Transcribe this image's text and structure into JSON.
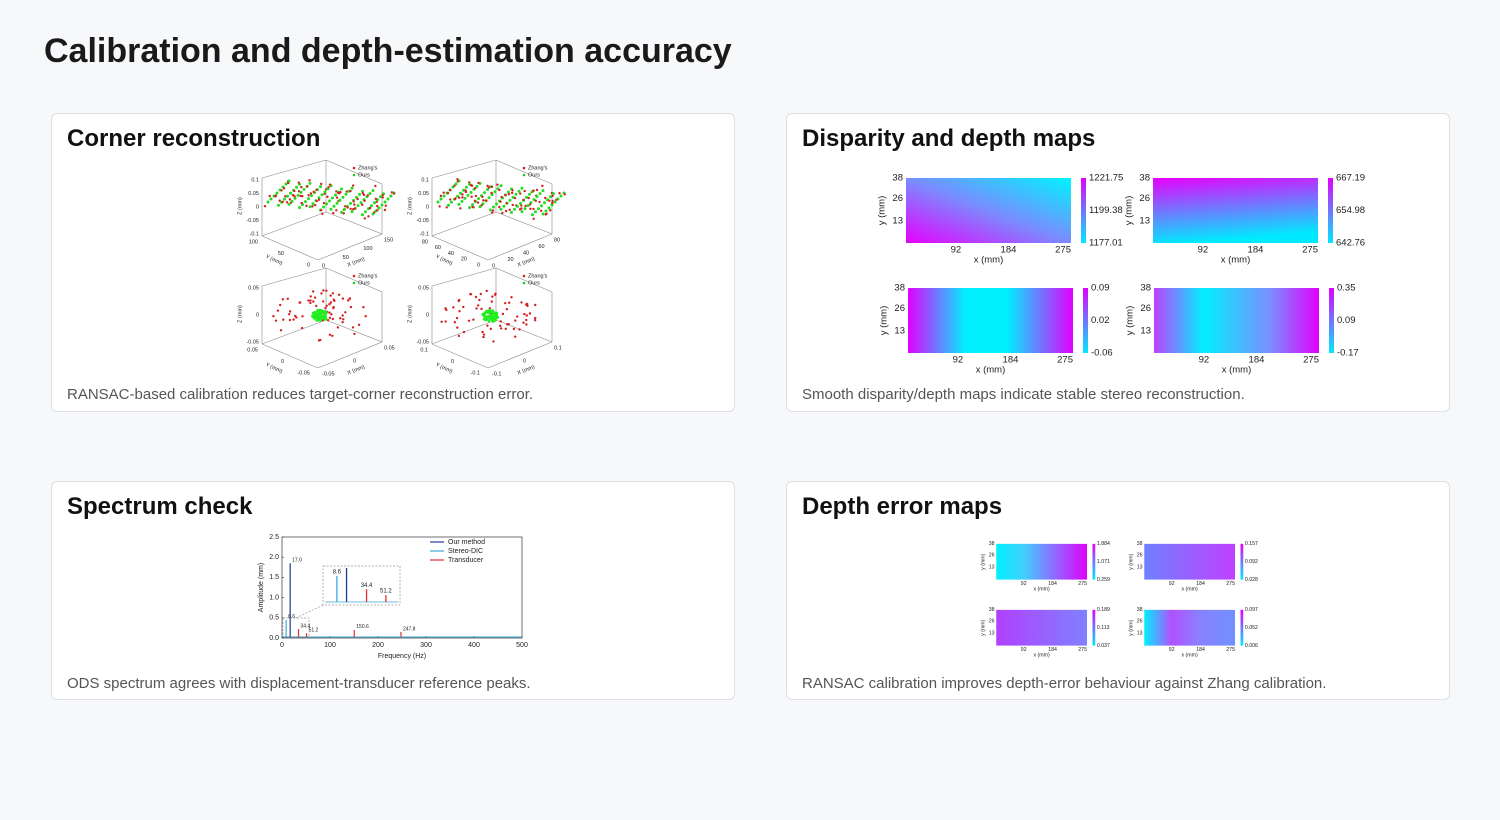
{
  "header": {
    "title": "Calibration and depth-estimation accuracy"
  },
  "panels": [
    {
      "title": "Corner reconstruction",
      "caption": "RANSAC-based calibration reduces target-corner reconstruction error.",
      "figure": {
        "legend": [
          "Zhang's",
          "Ours"
        ],
        "x_label": "X (mm)",
        "y_label": "Y (mm)",
        "z_label": "Z (mm)",
        "subplots": [
          {
            "z_ticks": [
              "0.1",
              "0.05",
              "0",
              "-0.05",
              "-0.1"
            ],
            "y_ticks": [
              "100",
              "50",
              "0"
            ],
            "x_ticks": [
              "0",
              "50",
              "100",
              "150"
            ]
          },
          {
            "z_ticks": [
              "0.1",
              "0.05",
              "0",
              "-0.05",
              "-0.1"
            ],
            "y_ticks": [
              "80",
              "60",
              "40",
              "20",
              "0"
            ],
            "x_ticks": [
              "0",
              "20",
              "40",
              "60",
              "80"
            ]
          },
          {
            "z_ticks": [
              "0.05",
              "0",
              "-0.05"
            ],
            "y_ticks": [
              "0.05",
              "0",
              "-0.05"
            ],
            "x_ticks": [
              "-0.05",
              "0",
              "0.05"
            ]
          },
          {
            "z_ticks": [
              "0.05",
              "0",
              "-0.05"
            ],
            "y_ticks": [
              "0.1",
              "0",
              "-0.1"
            ],
            "x_ticks": [
              "-0.1",
              "0",
              "0.1"
            ]
          }
        ]
      }
    },
    {
      "title": "Disparity and depth maps",
      "caption": "Smooth disparity/depth maps indicate stable stereo reconstruction.",
      "figure": {
        "x_label": "x (mm)",
        "y_label": "y (mm)",
        "xlim": [
          0,
          275
        ],
        "ylim": [
          0,
          38
        ],
        "x_ticks": [
          92,
          184,
          275
        ],
        "y_ticks": [
          38,
          26,
          13
        ],
        "maps": [
          {
            "colorbar_ticks": [
              "1221.75",
              "1199.38",
              "1177.01"
            ]
          },
          {
            "colorbar_ticks": [
              "667.19",
              "654.98",
              "642.76"
            ]
          },
          {
            "colorbar_ticks": [
              "0.09",
              "0.02",
              "-0.06"
            ]
          },
          {
            "colorbar_ticks": [
              "0.35",
              "0.09",
              "-0.17"
            ]
          }
        ]
      }
    },
    {
      "title": "Spectrum check",
      "caption": "ODS spectrum agrees with displacement-transducer reference peaks.",
      "figure": {
        "x_label": "Frequency (Hz)",
        "y_label": "Amplitude (mm)",
        "xlim": [
          0,
          500
        ],
        "ylim": [
          0,
          2.5
        ],
        "x_ticks": [
          0,
          100,
          200,
          300,
          400,
          500
        ],
        "y_ticks": [
          {
            "value": 0,
            "label": "0.0"
          },
          {
            "value": 0.5,
            "label": "0.5"
          },
          {
            "value": 1,
            "label": "1.0"
          },
          {
            "value": 1.5,
            "label": "1.5"
          },
          {
            "value": 2,
            "label": "2.0"
          },
          {
            "value": 2.5,
            "label": "2.5"
          }
        ],
        "series": [
          {
            "name": "Our method",
            "color": "#1f3b8f",
            "x": [
              17.0
            ],
            "values": [
              1.85
            ],
            "value_labels": [
              "17.0"
            ]
          },
          {
            "name": "Stereo-DIC",
            "color": "#3fa7d6",
            "x": [
              8.6
            ],
            "values": [
              0.45
            ],
            "value_labels": [
              "8.6"
            ]
          },
          {
            "name": "Transducer",
            "color": "#e03030",
            "x": [
              34.4,
              51.2,
              150.6,
              247.8
            ],
            "values": [
              0.22,
              0.12,
              0.2,
              0.15
            ],
            "value_labels": [
              "34.4",
              "51.2",
              "150.6",
              "247.8"
            ]
          }
        ]
      }
    },
    {
      "title": "Depth error maps",
      "caption": "RANSAC calibration improves depth-error behaviour against Zhang calibration.",
      "figure": {
        "x_label": "x (mm)",
        "y_label": "y (mm)",
        "xlim": [
          0,
          275
        ],
        "ylim": [
          0,
          38
        ],
        "x_ticks": [
          92,
          184,
          275
        ],
        "y_ticks": [
          38,
          26,
          13
        ],
        "maps": [
          {
            "colorbar_ticks": [
              "1.884",
              "1.071",
              "0.259"
            ]
          },
          {
            "colorbar_ticks": [
              "0.157",
              "0.092",
              "0.028"
            ]
          },
          {
            "colorbar_ticks": [
              "0.189",
              "0.113",
              "0.037"
            ]
          },
          {
            "colorbar_ticks": [
              "0.097",
              "0.052",
              "0.006"
            ]
          }
        ]
      }
    }
  ]
}
